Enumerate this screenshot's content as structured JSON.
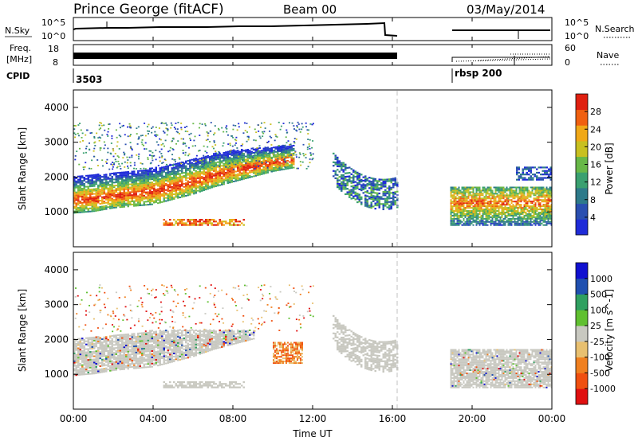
{
  "header": {
    "site": "Prince George (fitACF)",
    "beam": "Beam 00",
    "date": "03/May/2014"
  },
  "top_panels": {
    "nsky": {
      "label": "N.Sky",
      "ticks": [
        "10^5",
        "10^0"
      ],
      "right_label": "N.Search",
      "right_ticks": [
        "10^5",
        "10^0"
      ]
    },
    "freq": {
      "label_line1": "Freq.",
      "label_line2": "[MHz]",
      "ticks": [
        "18",
        "8"
      ],
      "right_label": "Nave",
      "right_ticks": [
        "60",
        "0"
      ]
    },
    "cpid": {
      "label": "CPID",
      "segments": [
        {
          "value": "3503",
          "start_h": 0
        },
        {
          "value": "rbsp 200",
          "start_h": 18.9
        }
      ]
    }
  },
  "colors": {
    "power_scale": [
      "#1f2bd8",
      "#2a4fb0",
      "#2e7a8a",
      "#3aa070",
      "#68b848",
      "#c8c020",
      "#f0a818",
      "#f06010",
      "#e02010"
    ],
    "velocity_scale": [
      "#1010d0",
      "#2050b0",
      "#30a060",
      "#60c030",
      "#c8c8c0",
      "#e8c070",
      "#f08020",
      "#f05010",
      "#e01010"
    ],
    "ground_scatter": "#c8c8c0"
  },
  "chart_data": [
    {
      "type": "heatmap",
      "name": "power-panel",
      "ylabel": "Slant Range [km]",
      "ylim": [
        0,
        4500
      ],
      "yticks": [
        "1000",
        "2000",
        "3000",
        "4000"
      ],
      "xlim": [
        0,
        24
      ],
      "colorbar": {
        "label": "Power [dB]",
        "ticks": [
          "4",
          "8",
          "12",
          "16",
          "20",
          "24",
          "28"
        ],
        "range": [
          0,
          32
        ]
      },
      "gaps_h": [
        [
          16.3,
          18.9
        ]
      ],
      "features": [
        {
          "desc": "main band",
          "x": [
            0,
            1,
            2,
            3,
            4,
            5,
            6,
            7,
            8,
            9,
            10,
            11
          ],
          "y_low": [
            950,
            1000,
            1100,
            1150,
            1200,
            1350,
            1500,
            1700,
            1850,
            2000,
            2150,
            2250
          ],
          "y_high": [
            2000,
            2050,
            2100,
            2150,
            2250,
            2350,
            2500,
            2650,
            2750,
            2800,
            2850,
            2900
          ]
        },
        {
          "desc": "short-range patch",
          "x_range": [
            4.5,
            8.5
          ],
          "y_range": [
            600,
            800
          ]
        },
        {
          "desc": "evening band",
          "x_range": [
            18.9,
            24
          ],
          "y_range": [
            800,
            1700
          ]
        }
      ]
    },
    {
      "type": "heatmap",
      "name": "velocity-panel",
      "ylabel": "Slant Range [km]",
      "ylim": [
        0,
        4500
      ],
      "yticks": [
        "1000",
        "2000",
        "3000",
        "4000"
      ],
      "xlim": [
        0,
        24
      ],
      "colorbar": {
        "label": "Velocity [m s^-1]",
        "ticks": [
          "1000",
          "500",
          "100",
          "25",
          "-25",
          "-100",
          "-500",
          "-1000"
        ]
      },
      "features": [
        {
          "desc": "ground scatter band",
          "x_range": [
            0,
            9
          ],
          "y_range": [
            900,
            2200
          ]
        },
        {
          "desc": "negative velocity patch",
          "x_range": [
            10,
            11.5
          ],
          "y_range": [
            1300,
            1900
          ]
        }
      ]
    }
  ],
  "xaxis": {
    "label": "Time UT",
    "ticks": [
      "00:00",
      "04:00",
      "08:00",
      "12:00",
      "16:00",
      "20:00",
      "00:00"
    ]
  }
}
